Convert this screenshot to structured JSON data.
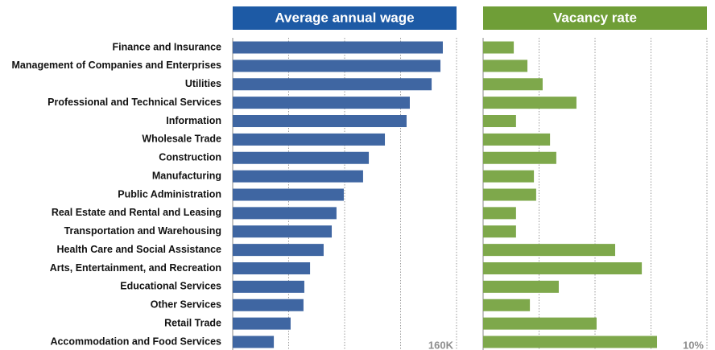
{
  "chart_data": [
    {
      "type": "barh",
      "title": "Average annual wage",
      "categories": [
        "Finance and Insurance",
        "Management of Companies and Enterprises",
        "Utilities",
        "Professional and Technical Services",
        "Information",
        "Wholesale Trade",
        "Construction",
        "Manufacturing",
        "Public Administration",
        "Real Estate and Rental and Leasing",
        "Transportation and Warehousing",
        "Health Care and Social Assistance",
        "Arts, Entertainment, and Recreation",
        "Educational Services",
        "Other Services",
        "Retail Trade",
        "Accommodation and Food Services"
      ],
      "values": [
        150200,
        148500,
        142200,
        126600,
        124300,
        108800,
        97300,
        93200,
        79400,
        74200,
        70800,
        65000,
        55300,
        51200,
        50600,
        41400,
        29400
      ],
      "color": "#3f66a2",
      "title_color": "#1d5aa5",
      "xlim": [
        0,
        160000
      ],
      "grid_lines": [
        40000,
        80000,
        120000,
        160000
      ],
      "xticks": [
        {
          "value": 160000,
          "label": "160K"
        }
      ]
    },
    {
      "type": "barh",
      "title": "Vacancy rate",
      "values": [
        1.37,
        1.98,
        2.66,
        4.17,
        1.47,
        2.99,
        3.27,
        2.27,
        2.37,
        1.47,
        1.47,
        5.9,
        7.09,
        3.38,
        2.09,
        5.07,
        7.77
      ],
      "color": "#7ea84b",
      "title_color": "#6f9e37",
      "xlim": [
        0,
        10
      ],
      "grid_lines": [
        2.5,
        5,
        7.5,
        10
      ],
      "xticks": [
        {
          "value": 10,
          "label": "10%"
        }
      ]
    }
  ]
}
